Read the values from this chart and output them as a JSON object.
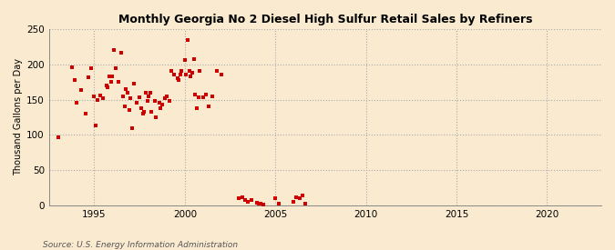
{
  "title": "Monthly Georgia No 2 Diesel High Sulfur Retail Sales by Refiners",
  "ylabel": "Thousand Gallons per Day",
  "source": "Source: U.S. Energy Information Administration",
  "background_color": "#faebd0",
  "plot_bg_color": "#f5f0e8",
  "dot_color": "#cc0000",
  "xlim": [
    1992.5,
    2023
  ],
  "ylim": [
    0,
    250
  ],
  "xticks": [
    1995,
    2000,
    2005,
    2010,
    2015,
    2020
  ],
  "yticks": [
    0,
    50,
    100,
    150,
    200,
    250
  ],
  "scatter_x": [
    1993.0,
    1993.75,
    1993.92,
    1994.0,
    1994.25,
    1994.5,
    1994.67,
    1994.83,
    1995.0,
    1995.08,
    1995.17,
    1995.33,
    1995.5,
    1995.67,
    1995.75,
    1995.83,
    1995.92,
    1996.0,
    1996.08,
    1996.17,
    1996.33,
    1996.5,
    1996.58,
    1996.67,
    1996.75,
    1996.83,
    1996.92,
    1997.0,
    1997.08,
    1997.17,
    1997.33,
    1997.5,
    1997.58,
    1997.67,
    1997.75,
    1997.83,
    1997.92,
    1998.0,
    1998.08,
    1998.17,
    1998.33,
    1998.42,
    1998.58,
    1998.67,
    1998.75,
    1998.92,
    1999.0,
    1999.17,
    1999.25,
    1999.42,
    1999.58,
    1999.67,
    1999.75,
    1999.83,
    2000.0,
    2000.08,
    2000.17,
    2000.25,
    2000.33,
    2000.42,
    2000.5,
    2000.58,
    2000.67,
    2000.75,
    2000.83,
    2001.0,
    2001.17,
    2001.33,
    2001.5,
    2001.75,
    2002.0,
    2003.0,
    2003.17,
    2003.33,
    2003.5,
    2003.67,
    2004.0,
    2004.08,
    2004.17,
    2004.33,
    2005.0,
    2005.17,
    2006.0,
    2006.17,
    2006.33,
    2006.5,
    2006.67
  ],
  "scatter_y": [
    97,
    196,
    178,
    145,
    163,
    130,
    181,
    194,
    155,
    113,
    150,
    156,
    152,
    170,
    168,
    183,
    175,
    183,
    220,
    195,
    175,
    217,
    155,
    140,
    165,
    160,
    135,
    152,
    110,
    172,
    145,
    153,
    138,
    130,
    133,
    160,
    148,
    155,
    160,
    133,
    148,
    125,
    145,
    138,
    143,
    152,
    155,
    148,
    190,
    185,
    180,
    178,
    185,
    190,
    206,
    185,
    234,
    190,
    183,
    188,
    207,
    157,
    138,
    153,
    190,
    153,
    157,
    140,
    155,
    190,
    186,
    10,
    12,
    8,
    5,
    7,
    4,
    3,
    2,
    1,
    10,
    3,
    5,
    11,
    10,
    14,
    2
  ]
}
